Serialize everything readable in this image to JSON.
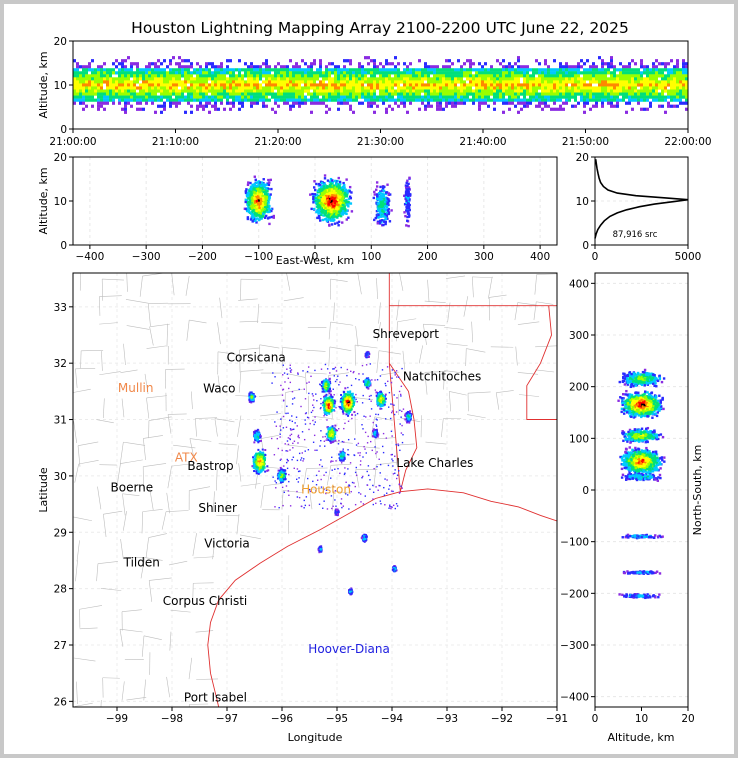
{
  "chart_data": [
    {
      "type": "heatmap",
      "panel": "altitude-time",
      "title": "Houston Lightning Mapping Array 2100-2200 UTC June 22, 2025",
      "ylabel": "Altitude, km",
      "ylim": [
        0,
        20
      ],
      "yticks": [
        "0",
        "10",
        "20"
      ],
      "xticks": [
        "21:00:00",
        "21:10:00",
        "21:20:00",
        "21:30:00",
        "21:40:00",
        "21:50:00",
        "22:00:00"
      ],
      "core_band_km": [
        6,
        14
      ]
    },
    {
      "type": "heatmap",
      "panel": "altitude-east-west",
      "xlabel": "East-West, km",
      "ylabel": "Altitude, km",
      "xlim": [
        -430,
        430
      ],
      "ylim": [
        0,
        20
      ],
      "xticks": [
        "−400",
        "−300",
        "−200",
        "−100",
        "0",
        "100",
        "200",
        "300",
        "400"
      ],
      "yticks": [
        "0",
        "10",
        "20"
      ],
      "clusters": [
        {
          "x_center": -100,
          "width": 50,
          "alt_peak": 10,
          "intensity": 0.9
        },
        {
          "x_center": 30,
          "width": 70,
          "alt_peak": 10,
          "intensity": 1.0
        },
        {
          "x_center": 120,
          "width": 30,
          "alt_peak": 9,
          "intensity": 0.45
        },
        {
          "x_center": 165,
          "width": 12,
          "alt_peak": 10,
          "intensity": 0.25
        }
      ]
    },
    {
      "type": "line",
      "panel": "source-histogram",
      "xlim": [
        0,
        5000
      ],
      "ylim": [
        0,
        20
      ],
      "xticks": [
        "0",
        "5000"
      ],
      "yticks": [
        "0",
        "10",
        "20"
      ],
      "annotation": "87,916 src",
      "x": [
        0,
        60,
        150,
        300,
        500,
        800,
        1200,
        1700,
        2400,
        3200,
        4300,
        5000,
        3800,
        2200,
        1200,
        700,
        450,
        300,
        220,
        160,
        110,
        70,
        40
      ],
      "y": [
        1.5,
        2.5,
        3.5,
        4.5,
        5.5,
        6.5,
        7.3,
        8,
        8.7,
        9.3,
        9.9,
        10.3,
        10.7,
        11.2,
        11.8,
        12.5,
        13.3,
        14.2,
        15.2,
        16.3,
        17.4,
        18.5,
        19.5
      ]
    },
    {
      "type": "scatter",
      "panel": "plan-view-map",
      "xlabel": "Longitude",
      "ylabel": "Latitude",
      "xlim": [
        -99.8,
        -91
      ],
      "ylim": [
        25.9,
        33.6
      ],
      "xticks": [
        "−99",
        "−98",
        "−97",
        "−96",
        "−95",
        "−94",
        "−93",
        "−92",
        "−91"
      ],
      "yticks": [
        "26",
        "27",
        "28",
        "29",
        "30",
        "31",
        "32",
        "33"
      ],
      "cities": [
        {
          "name": "Shreveport",
          "lon": -93.75,
          "lat": 32.52,
          "color": "#000000"
        },
        {
          "name": "Corsicana",
          "lon": -96.47,
          "lat": 32.1,
          "color": "#000000"
        },
        {
          "name": "Natchitoches",
          "lon": -93.09,
          "lat": 31.76,
          "color": "#000000"
        },
        {
          "name": "Mullin",
          "lon": -98.66,
          "lat": 31.56,
          "color": "#f0884a"
        },
        {
          "name": "Waco",
          "lon": -97.14,
          "lat": 31.55,
          "color": "#000000"
        },
        {
          "name": "Lake Charles",
          "lon": -93.22,
          "lat": 30.23,
          "color": "#000000"
        },
        {
          "name": "ATX",
          "lon": -97.74,
          "lat": 30.33,
          "color": "#f0884a"
        },
        {
          "name": "Bastrop",
          "lon": -97.3,
          "lat": 30.18,
          "color": "#000000"
        },
        {
          "name": "Boerne",
          "lon": -98.73,
          "lat": 29.79,
          "color": "#000000"
        },
        {
          "name": "Houston",
          "lon": -95.2,
          "lat": 29.76,
          "color": "#f0a030"
        },
        {
          "name": "Shiner",
          "lon": -97.17,
          "lat": 29.43,
          "color": "#000000"
        },
        {
          "name": "Victoria",
          "lon": -97.0,
          "lat": 28.8,
          "color": "#000000"
        },
        {
          "name": "Tilden",
          "lon": -98.55,
          "lat": 28.46,
          "color": "#000000"
        },
        {
          "name": "Corpus Christi",
          "lon": -97.4,
          "lat": 27.78,
          "color": "#000000"
        },
        {
          "name": "Hoover-Diana",
          "lon": -94.78,
          "lat": 26.93,
          "color": "#2020e0"
        },
        {
          "name": "Port Isabel",
          "lon": -97.21,
          "lat": 26.07,
          "color": "#000000"
        }
      ],
      "storms": [
        {
          "lon": -96.55,
          "lat": 31.4,
          "size": 0.05,
          "intensity": 0.6
        },
        {
          "lon": -96.45,
          "lat": 30.7,
          "size": 0.06,
          "intensity": 0.5
        },
        {
          "lon": -96.4,
          "lat": 30.25,
          "size": 0.12,
          "intensity": 0.9
        },
        {
          "lon": -96.0,
          "lat": 30.0,
          "size": 0.07,
          "intensity": 0.6
        },
        {
          "lon": -95.2,
          "lat": 31.6,
          "size": 0.07,
          "intensity": 0.7
        },
        {
          "lon": -95.15,
          "lat": 31.25,
          "size": 0.1,
          "intensity": 1.0
        },
        {
          "lon": -94.8,
          "lat": 31.3,
          "size": 0.12,
          "intensity": 1.0
        },
        {
          "lon": -94.45,
          "lat": 31.65,
          "size": 0.05,
          "intensity": 0.6
        },
        {
          "lon": -94.2,
          "lat": 31.35,
          "size": 0.08,
          "intensity": 0.8
        },
        {
          "lon": -95.1,
          "lat": 30.75,
          "size": 0.08,
          "intensity": 0.8
        },
        {
          "lon": -94.9,
          "lat": 30.35,
          "size": 0.05,
          "intensity": 0.5
        },
        {
          "lon": -94.3,
          "lat": 30.75,
          "size": 0.04,
          "intensity": 0.4
        },
        {
          "lon": -93.7,
          "lat": 31.05,
          "size": 0.05,
          "intensity": 0.5
        },
        {
          "lon": -95.0,
          "lat": 29.35,
          "size": 0.03,
          "intensity": 0.3
        },
        {
          "lon": -95.3,
          "lat": 28.7,
          "size": 0.03,
          "intensity": 0.3
        },
        {
          "lon": -94.5,
          "lat": 28.9,
          "size": 0.04,
          "intensity": 0.4
        },
        {
          "lon": -93.95,
          "lat": 28.35,
          "size": 0.03,
          "intensity": 0.4
        },
        {
          "lon": -94.75,
          "lat": 27.95,
          "size": 0.03,
          "intensity": 0.4
        },
        {
          "lon": -94.45,
          "lat": 32.15,
          "size": 0.03,
          "intensity": 0.3
        }
      ]
    },
    {
      "type": "heatmap",
      "panel": "north-south-altitude",
      "xlabel": "Altitude, km",
      "ylabel": "North-South, km",
      "xlim": [
        0,
        20
      ],
      "ylim": [
        -420,
        420
      ],
      "xticks": [
        "0",
        "10",
        "20"
      ],
      "yticks": [
        "−400",
        "−300",
        "−200",
        "−100",
        "0",
        "100",
        "200",
        "300",
        "400"
      ],
      "clusters": [
        {
          "y_center": 165,
          "height": 50,
          "intensity": 1.0
        },
        {
          "y_center": 215,
          "height": 30,
          "intensity": 0.6
        },
        {
          "y_center": 105,
          "height": 26,
          "intensity": 0.7
        },
        {
          "y_center": 55,
          "height": 50,
          "intensity": 0.9
        },
        {
          "y_center": 25,
          "height": 14,
          "intensity": 0.4
        },
        {
          "y_center": -90,
          "height": 8,
          "intensity": 0.3
        },
        {
          "y_center": -160,
          "height": 6,
          "intensity": 0.25
        },
        {
          "y_center": -205,
          "height": 8,
          "intensity": 0.3
        }
      ]
    }
  ]
}
